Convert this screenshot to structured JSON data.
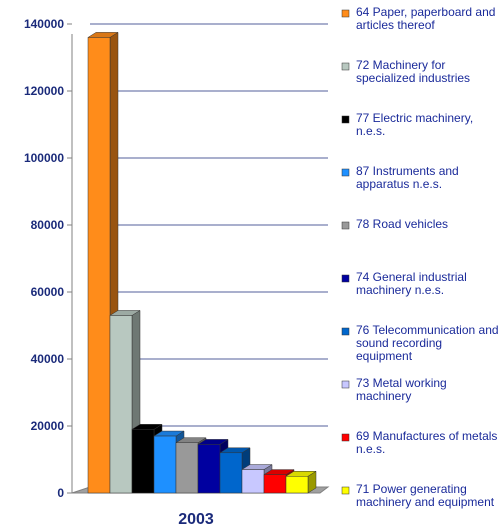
{
  "chart_data": {
    "type": "bar3d",
    "categories": [
      "2003"
    ],
    "series": [
      {
        "name": "64 Paper, paperboard and articles thereof",
        "color": "#ff8c1a",
        "values": [
          136000
        ]
      },
      {
        "name": "72 Machinery for specialized industries",
        "color": "#b8c8c0",
        "values": [
          53000
        ]
      },
      {
        "name": "77 Electric machinery, n.e.s.",
        "color": "#000000",
        "values": [
          19000
        ]
      },
      {
        "name": "87 Instruments and apparatus n.e.s.",
        "color": "#1e90ff",
        "values": [
          17000
        ]
      },
      {
        "name": "78 Road vehicles",
        "color": "#999999",
        "values": [
          15000
        ]
      },
      {
        "name": "74 General industrial machinery n.e.s.",
        "color": "#0000a0",
        "values": [
          14500
        ]
      },
      {
        "name": "76 Telecommunication and sound recording equipment",
        "color": "#0066cc",
        "values": [
          12000
        ]
      },
      {
        "name": "73 Metal working machinery",
        "color": "#c8c8ff",
        "values": [
          7000
        ]
      },
      {
        "name": "69 Manufactures of metals n.e.s.",
        "color": "#ff0000",
        "values": [
          5500
        ]
      },
      {
        "name": "71 Power generating machinery and equipment",
        "color": "#ffff00",
        "values": [
          5000
        ]
      }
    ],
    "ylim": [
      0,
      140000
    ],
    "yticks": [
      0,
      20000,
      40000,
      60000,
      80000,
      100000,
      120000,
      140000
    ],
    "grid": true
  }
}
